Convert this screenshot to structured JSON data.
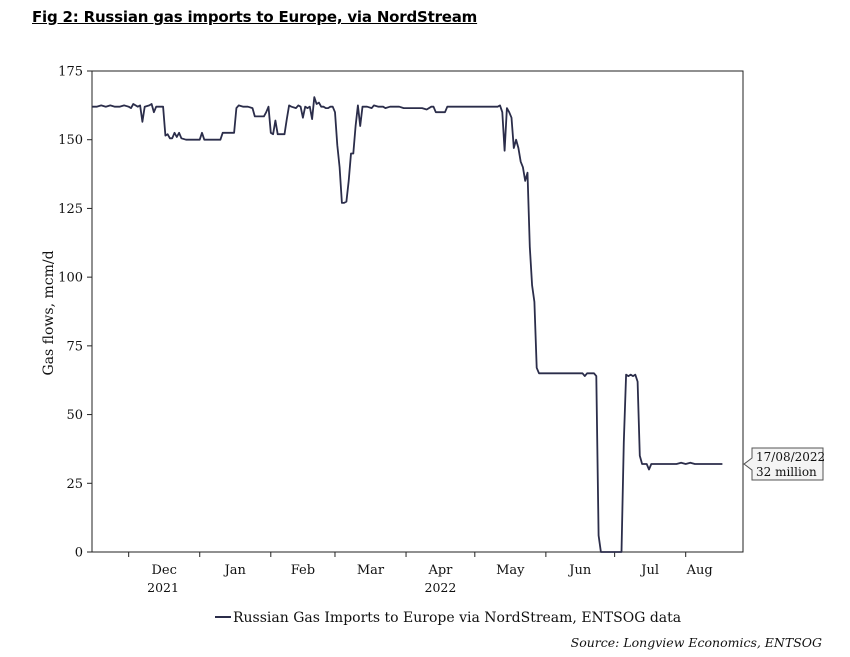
{
  "figure": {
    "title": "Fig 2: Russian gas imports to Europe, via NordStream",
    "source": "Source: Longview Economics, ENTSOG"
  },
  "chart_data": {
    "type": "line",
    "ylabel": "Gas flows, mcm/d",
    "ylim": [
      0,
      175
    ],
    "yticks": [
      0,
      25,
      50,
      75,
      100,
      125,
      150,
      175
    ],
    "x_months": [
      "Dec",
      "Jan",
      "Feb",
      "Mar",
      "Apr",
      "May",
      "Jun",
      "Jul",
      "Aug"
    ],
    "x_years": [
      "2021",
      "2022"
    ],
    "xlim": [
      "2021-11-15",
      "2022-08-26"
    ],
    "grid": false,
    "legend_position": "bottom",
    "series": [
      {
        "name": "Russian Gas Imports to Europe via NordStream, ENTSOG data",
        "color": "#2b2d4a",
        "points": [
          [
            "2021-11-15",
            162
          ],
          [
            "2021-11-17",
            162
          ],
          [
            "2021-11-19",
            162.5
          ],
          [
            "2021-11-21",
            162
          ],
          [
            "2021-11-23",
            162.5
          ],
          [
            "2021-11-25",
            162
          ],
          [
            "2021-11-27",
            162
          ],
          [
            "2021-11-29",
            162.5
          ],
          [
            "2021-12-01",
            162
          ],
          [
            "2021-12-02",
            161.5
          ],
          [
            "2021-12-03",
            163
          ],
          [
            "2021-12-05",
            162
          ],
          [
            "2021-12-06",
            162.5
          ],
          [
            "2021-12-07",
            156.5
          ],
          [
            "2021-12-08",
            162
          ],
          [
            "2021-12-10",
            162.5
          ],
          [
            "2021-12-11",
            163
          ],
          [
            "2021-12-12",
            160
          ],
          [
            "2021-12-13",
            162
          ],
          [
            "2021-12-15",
            162
          ],
          [
            "2021-12-16",
            162
          ],
          [
            "2021-12-17",
            151.5
          ],
          [
            "2021-12-18",
            152
          ],
          [
            "2021-12-19",
            150.5
          ],
          [
            "2021-12-20",
            150.5
          ],
          [
            "2021-12-21",
            152.5
          ],
          [
            "2021-12-22",
            151
          ],
          [
            "2021-12-23",
            152.5
          ],
          [
            "2021-12-24",
            150.5
          ],
          [
            "2021-12-26",
            150
          ],
          [
            "2021-12-28",
            150
          ],
          [
            "2021-12-30",
            150
          ],
          [
            "2022-01-01",
            150
          ],
          [
            "2022-01-02",
            152.5
          ],
          [
            "2022-01-03",
            150
          ],
          [
            "2022-01-05",
            150
          ],
          [
            "2022-01-07",
            150
          ],
          [
            "2022-01-09",
            150
          ],
          [
            "2022-01-10",
            150
          ],
          [
            "2022-01-11",
            152.5
          ],
          [
            "2022-01-13",
            152.5
          ],
          [
            "2022-01-15",
            152.5
          ],
          [
            "2022-01-16",
            152.5
          ],
          [
            "2022-01-17",
            161.5
          ],
          [
            "2022-01-18",
            162.5
          ],
          [
            "2022-01-20",
            162
          ],
          [
            "2022-01-22",
            162
          ],
          [
            "2022-01-24",
            161.5
          ],
          [
            "2022-01-25",
            158.5
          ],
          [
            "2022-01-27",
            158.5
          ],
          [
            "2022-01-29",
            158.5
          ],
          [
            "2022-01-30",
            160
          ],
          [
            "2022-01-31",
            162
          ],
          [
            "2022-02-01",
            152.5
          ],
          [
            "2022-02-02",
            152
          ],
          [
            "2022-02-03",
            157
          ],
          [
            "2022-02-04",
            152
          ],
          [
            "2022-02-06",
            152
          ],
          [
            "2022-02-07",
            152
          ],
          [
            "2022-02-08",
            157.5
          ],
          [
            "2022-02-09",
            162.5
          ],
          [
            "2022-02-10",
            162
          ],
          [
            "2022-02-12",
            161.5
          ],
          [
            "2022-02-13",
            162.5
          ],
          [
            "2022-02-14",
            162
          ],
          [
            "2022-02-15",
            158
          ],
          [
            "2022-02-16",
            162
          ],
          [
            "2022-02-17",
            161.5
          ],
          [
            "2022-02-18",
            162
          ],
          [
            "2022-02-19",
            157.5
          ],
          [
            "2022-02-20",
            165.5
          ],
          [
            "2022-02-21",
            163
          ],
          [
            "2022-02-22",
            163.5
          ],
          [
            "2022-02-23",
            162
          ],
          [
            "2022-02-24",
            162
          ],
          [
            "2022-02-25",
            161.5
          ],
          [
            "2022-02-26",
            161.5
          ],
          [
            "2022-02-27",
            162
          ],
          [
            "2022-02-28",
            162
          ],
          [
            "2022-03-01",
            160
          ],
          [
            "2022-03-02",
            148
          ],
          [
            "2022-03-03",
            140
          ],
          [
            "2022-03-04",
            127
          ],
          [
            "2022-03-05",
            127
          ],
          [
            "2022-03-06",
            127.5
          ],
          [
            "2022-03-07",
            135
          ],
          [
            "2022-03-08",
            145
          ],
          [
            "2022-03-09",
            145
          ],
          [
            "2022-03-10",
            155
          ],
          [
            "2022-03-11",
            162.5
          ],
          [
            "2022-03-12",
            155
          ],
          [
            "2022-03-13",
            162
          ],
          [
            "2022-03-15",
            162
          ],
          [
            "2022-03-17",
            161.5
          ],
          [
            "2022-03-18",
            162.5
          ],
          [
            "2022-03-20",
            162
          ],
          [
            "2022-03-22",
            162
          ],
          [
            "2022-03-23",
            161.5
          ],
          [
            "2022-03-25",
            162
          ],
          [
            "2022-03-27",
            162
          ],
          [
            "2022-03-29",
            162
          ],
          [
            "2022-03-31",
            161.5
          ],
          [
            "2022-04-02",
            161.5
          ],
          [
            "2022-04-04",
            161.5
          ],
          [
            "2022-04-06",
            161.5
          ],
          [
            "2022-04-08",
            161.5
          ],
          [
            "2022-04-10",
            161
          ],
          [
            "2022-04-12",
            162
          ],
          [
            "2022-04-13",
            162
          ],
          [
            "2022-04-14",
            160
          ],
          [
            "2022-04-16",
            160
          ],
          [
            "2022-04-18",
            160
          ],
          [
            "2022-04-19",
            162
          ],
          [
            "2022-04-21",
            162
          ],
          [
            "2022-04-23",
            162
          ],
          [
            "2022-04-25",
            162
          ],
          [
            "2022-04-27",
            162
          ],
          [
            "2022-04-29",
            162
          ],
          [
            "2022-05-01",
            162
          ],
          [
            "2022-05-03",
            162
          ],
          [
            "2022-05-05",
            162
          ],
          [
            "2022-05-07",
            162
          ],
          [
            "2022-05-09",
            162
          ],
          [
            "2022-05-11",
            162
          ],
          [
            "2022-05-12",
            162.5
          ],
          [
            "2022-05-13",
            160
          ],
          [
            "2022-05-14",
            146
          ],
          [
            "2022-05-15",
            161.5
          ],
          [
            "2022-05-16",
            160
          ],
          [
            "2022-05-17",
            158
          ],
          [
            "2022-05-18",
            147
          ],
          [
            "2022-05-19",
            150
          ],
          [
            "2022-05-20",
            147
          ],
          [
            "2022-05-21",
            142
          ],
          [
            "2022-05-22",
            140
          ],
          [
            "2022-05-23",
            135
          ],
          [
            "2022-05-24",
            138
          ],
          [
            "2022-05-25",
            111
          ],
          [
            "2022-05-26",
            97
          ],
          [
            "2022-05-27",
            91
          ],
          [
            "2022-05-28",
            67
          ],
          [
            "2022-05-29",
            65
          ],
          [
            "2022-06-01",
            65
          ],
          [
            "2022-06-05",
            65
          ],
          [
            "2022-06-09",
            65
          ],
          [
            "2022-06-13",
            65
          ],
          [
            "2022-06-17",
            65
          ],
          [
            "2022-06-18",
            64
          ],
          [
            "2022-06-19",
            65
          ],
          [
            "2022-06-20",
            65
          ],
          [
            "2022-06-22",
            65
          ],
          [
            "2022-06-23",
            64
          ],
          [
            "2022-06-24",
            6
          ],
          [
            "2022-06-25",
            0
          ],
          [
            "2022-06-28",
            0
          ],
          [
            "2022-07-01",
            0
          ],
          [
            "2022-07-04",
            0
          ],
          [
            "2022-07-05",
            40
          ],
          [
            "2022-07-06",
            64.5
          ],
          [
            "2022-07-07",
            64
          ],
          [
            "2022-07-08",
            64.5
          ],
          [
            "2022-07-09",
            64
          ],
          [
            "2022-07-10",
            64.5
          ],
          [
            "2022-07-11",
            62
          ],
          [
            "2022-07-12",
            35
          ],
          [
            "2022-07-13",
            32
          ],
          [
            "2022-07-14",
            32
          ],
          [
            "2022-07-15",
            32
          ],
          [
            "2022-07-16",
            30
          ],
          [
            "2022-07-17",
            32
          ],
          [
            "2022-07-18",
            32
          ],
          [
            "2022-07-20",
            32
          ],
          [
            "2022-07-22",
            32
          ],
          [
            "2022-07-24",
            32
          ],
          [
            "2022-07-26",
            32
          ],
          [
            "2022-07-28",
            32
          ],
          [
            "2022-07-30",
            32.5
          ],
          [
            "2022-08-01",
            32
          ],
          [
            "2022-08-03",
            32.5
          ],
          [
            "2022-08-05",
            32
          ],
          [
            "2022-08-07",
            32
          ],
          [
            "2022-08-09",
            32
          ],
          [
            "2022-08-11",
            32
          ],
          [
            "2022-08-13",
            32
          ],
          [
            "2022-08-15",
            32
          ],
          [
            "2022-08-17",
            32
          ]
        ]
      }
    ],
    "annotation": {
      "date": "17/08/2022",
      "value_label": "32 million",
      "value": 32
    }
  }
}
